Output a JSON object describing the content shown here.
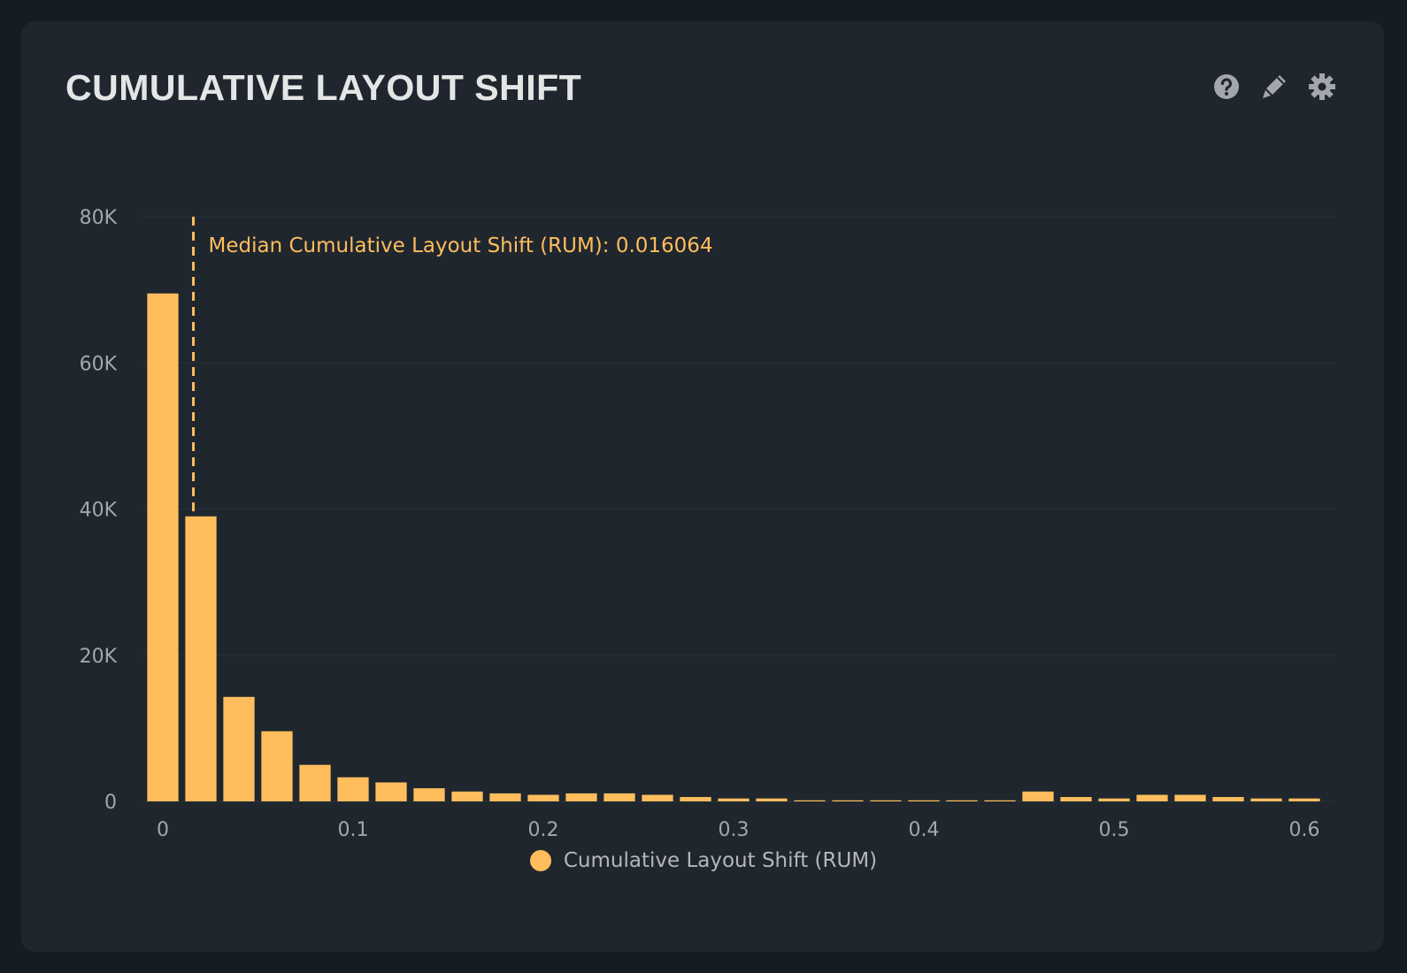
{
  "card": {
    "title": "CUMULATIVE LAYOUT SHIFT",
    "icons": [
      "help-icon",
      "pencil-icon",
      "gear-icon"
    ]
  },
  "colors": {
    "bar": "#ffbd5e",
    "grid": "#2a323a",
    "text": "#a3a7ab"
  },
  "chart_data": {
    "type": "bar",
    "title": "Cumulative Layout Shift",
    "xlabel": "",
    "ylabel": "",
    "bin_width": 0.02,
    "x": [
      0,
      0.02,
      0.04,
      0.06,
      0.08,
      0.1,
      0.12,
      0.14,
      0.16,
      0.18,
      0.2,
      0.22,
      0.24,
      0.26,
      0.28,
      0.3,
      0.32,
      0.34,
      0.36,
      0.38,
      0.4,
      0.42,
      0.44,
      0.46,
      0.48,
      0.5,
      0.52,
      0.54,
      0.56,
      0.58,
      0.6
    ],
    "series": [
      {
        "name": "Cumulative Layout Shift (RUM)",
        "values": [
          69500,
          39000,
          14300,
          9600,
          5000,
          3300,
          2600,
          1800,
          1350,
          1100,
          900,
          1100,
          1100,
          900,
          600,
          400,
          400,
          150,
          150,
          150,
          150,
          150,
          150,
          1350,
          600,
          400,
          900,
          900,
          600,
          400,
          400
        ]
      }
    ],
    "xlim": [
      0,
      0.6
    ],
    "ylim": [
      0,
      80000
    ],
    "x_ticks": [
      {
        "v": 0,
        "label": "0"
      },
      {
        "v": 0.1,
        "label": "0.1"
      },
      {
        "v": 0.2,
        "label": "0.2"
      },
      {
        "v": 0.3,
        "label": "0.3"
      },
      {
        "v": 0.4,
        "label": "0.4"
      },
      {
        "v": 0.5,
        "label": "0.5"
      },
      {
        "v": 0.6,
        "label": "0.6"
      }
    ],
    "y_ticks": [
      {
        "v": 0,
        "label": "0"
      },
      {
        "v": 20000,
        "label": "20K"
      },
      {
        "v": 40000,
        "label": "40K"
      },
      {
        "v": 60000,
        "label": "60K"
      },
      {
        "v": 80000,
        "label": "80K"
      }
    ],
    "grid": true,
    "annotation": {
      "x": 0.016064,
      "label": "Median Cumulative Layout Shift (RUM): 0.016064"
    },
    "legend": {
      "position": "bottom",
      "entries": [
        "Cumulative Layout Shift (RUM)"
      ]
    }
  }
}
